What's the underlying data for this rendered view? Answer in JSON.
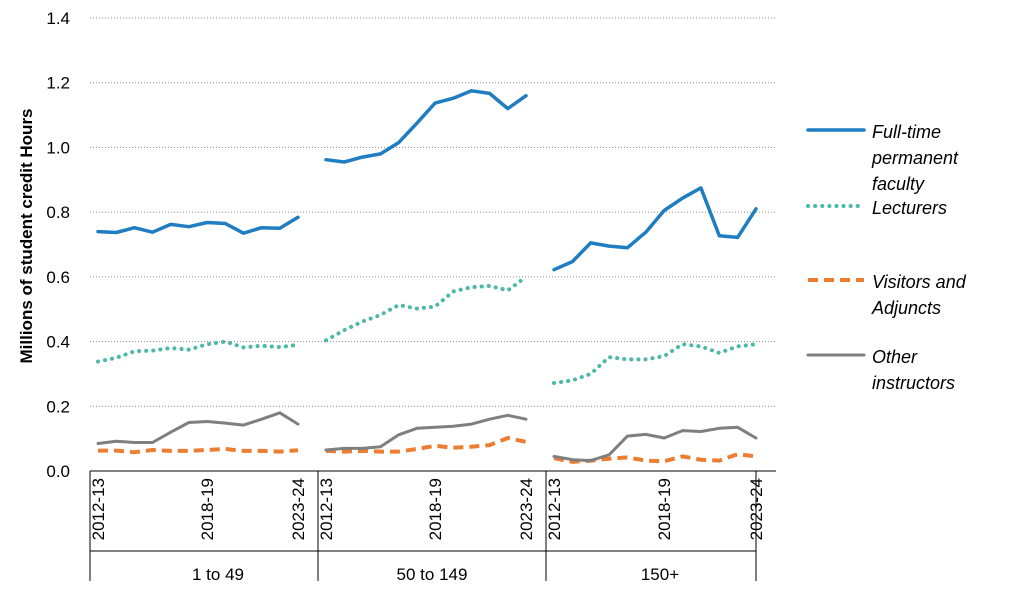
{
  "chart_data": {
    "type": "line",
    "ylabel": "Millions of student credit Hours",
    "xlabel": "",
    "ylim": [
      0,
      1.4
    ],
    "yticks": [
      "0.0",
      "0.2",
      "0.4",
      "0.6",
      "0.8",
      "1.0",
      "1.2",
      "1.4"
    ],
    "grid": "horizontal dotted",
    "legend_position": "right",
    "groups": [
      {
        "label": "1 to 49",
        "tick_labels": [
          "2012-13",
          "2018-19",
          "2023-24"
        ]
      },
      {
        "label": "50 to 149",
        "tick_labels": [
          "2012-13",
          "2018-19",
          "2023-24"
        ]
      },
      {
        "label": "150+",
        "tick_labels": [
          "2012-13",
          "2018-19",
          "2023-24"
        ]
      }
    ],
    "years": [
      "2012-13",
      "2013-14",
      "2014-15",
      "2015-16",
      "2016-17",
      "2017-18",
      "2018-19",
      "2019-20",
      "2020-21",
      "2021-22",
      "2022-23",
      "2023-24"
    ],
    "series": [
      {
        "name": "Full-time permanent faculty",
        "legend_lines": [
          "Full-time",
          "permanent",
          "faculty"
        ],
        "color": "#1F7DC1",
        "style": "solid",
        "values": [
          [
            0.74,
            0.737,
            0.752,
            0.738,
            0.762,
            0.755,
            0.768,
            0.765,
            0.735,
            0.752,
            0.75,
            0.784
          ],
          [
            0.962,
            0.955,
            0.97,
            0.98,
            1.015,
            1.075,
            1.137,
            1.152,
            1.175,
            1.167,
            1.12,
            1.16
          ],
          [
            0.622,
            0.647,
            0.705,
            0.695,
            0.69,
            0.738,
            0.805,
            0.843,
            0.875,
            0.727,
            0.722,
            0.81
          ]
        ]
      },
      {
        "name": "Lecturers",
        "legend_lines": [
          "Lecturers"
        ],
        "color": "#4DB8A8",
        "style": "dotted",
        "values": [
          [
            0.338,
            0.35,
            0.37,
            0.372,
            0.38,
            0.375,
            0.392,
            0.4,
            0.382,
            0.387,
            0.383,
            0.39
          ],
          [
            0.404,
            0.435,
            0.462,
            0.482,
            0.513,
            0.502,
            0.508,
            0.555,
            0.568,
            0.572,
            0.558,
            0.6
          ],
          [
            0.272,
            0.28,
            0.3,
            0.352,
            0.345,
            0.345,
            0.355,
            0.392,
            0.385,
            0.365,
            0.385,
            0.392
          ]
        ]
      },
      {
        "name": "Visitors and Adjuncts",
        "legend_lines": [
          "Visitors and",
          "Adjuncts"
        ],
        "color": "#ED7D31",
        "style": "dashed",
        "values": [
          [
            0.063,
            0.063,
            0.058,
            0.065,
            0.062,
            0.062,
            0.065,
            0.068,
            0.062,
            0.062,
            0.06,
            0.064
          ],
          [
            0.062,
            0.06,
            0.062,
            0.06,
            0.06,
            0.068,
            0.078,
            0.072,
            0.075,
            0.08,
            0.102,
            0.09
          ],
          [
            0.04,
            0.028,
            0.032,
            0.038,
            0.042,
            0.032,
            0.03,
            0.045,
            0.035,
            0.032,
            0.052,
            0.045
          ]
        ]
      },
      {
        "name": "Other instructors",
        "legend_lines": [
          "Other",
          "instructors"
        ],
        "color": "#7F7F7F",
        "style": "solid",
        "values": [
          [
            0.085,
            0.092,
            0.088,
            0.088,
            0.12,
            0.15,
            0.153,
            0.148,
            0.142,
            0.16,
            0.18,
            0.145
          ],
          [
            0.065,
            0.07,
            0.07,
            0.075,
            0.112,
            0.132,
            0.135,
            0.138,
            0.145,
            0.16,
            0.172,
            0.16
          ],
          [
            0.045,
            0.035,
            0.032,
            0.05,
            0.108,
            0.113,
            0.102,
            0.125,
            0.122,
            0.132,
            0.135,
            0.102
          ]
        ]
      }
    ]
  }
}
